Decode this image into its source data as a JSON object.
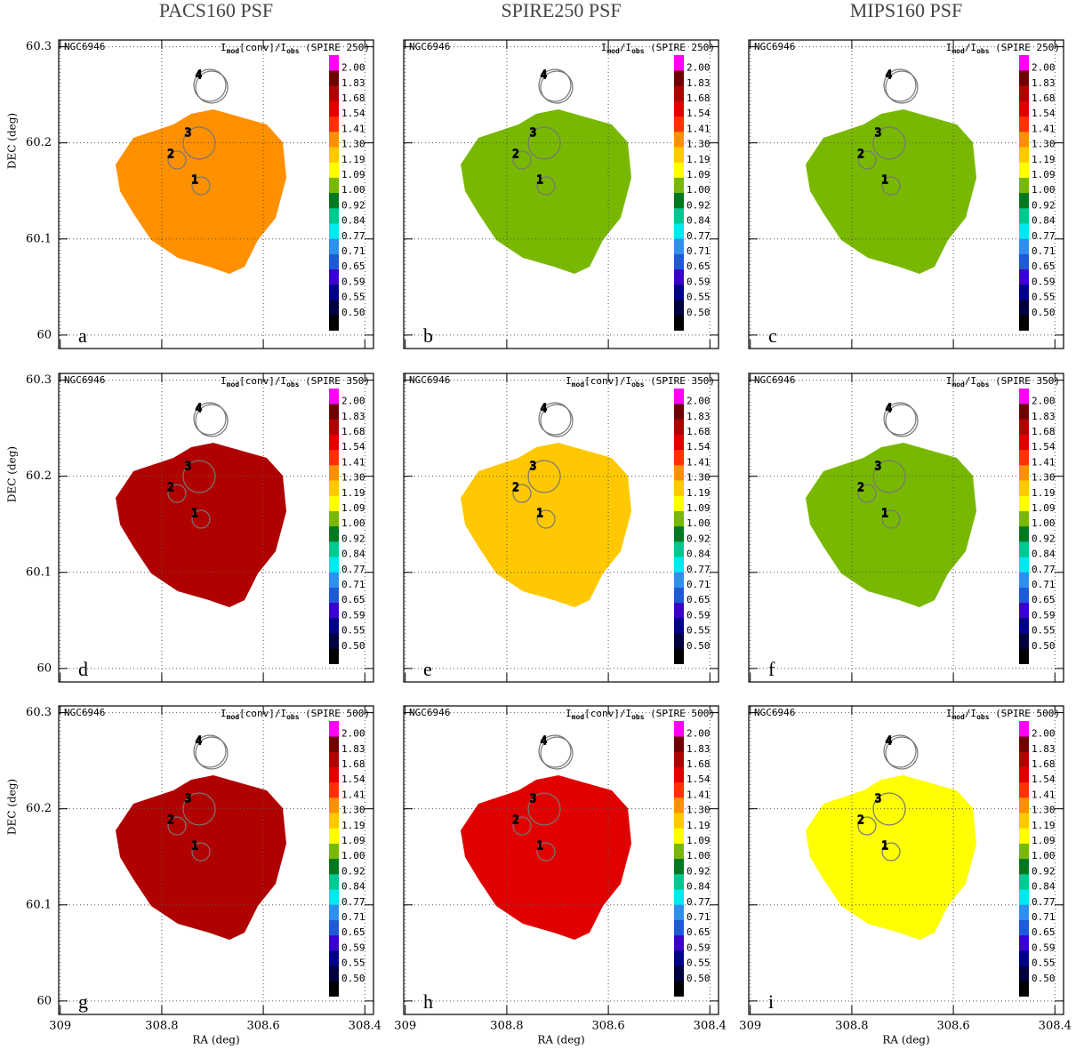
{
  "figure": {
    "type": "map-grid",
    "column_titles": [
      "PACS160 PSF",
      "SPIRE250 PSF",
      "MIPS160 PSF"
    ],
    "axes": {
      "xlabel": "RA (deg)",
      "ylabel": "DEC (deg)",
      "xlim": [
        309.003,
        308.383
      ],
      "ylim": [
        59.986,
        60.307
      ],
      "xticks": [
        309,
        308.8,
        308.6,
        308.4
      ],
      "yticks": [
        60,
        60.1,
        60.2,
        60.3
      ],
      "grid": true
    },
    "colorbar": {
      "levels": [
        {
          "value": 0.5,
          "label": "0.50"
        },
        0.55,
        0.59,
        0.65,
        0.71,
        0.77,
        0.84,
        0.92,
        {
          "value": 1,
          "label": "1.00"
        },
        1.09,
        1.19,
        {
          "value": 1.3,
          "label": "1.30"
        },
        1.41,
        1.54,
        1.68,
        1.83,
        {
          "value": 2,
          "label": "2.00"
        }
      ],
      "colors": [
        "#000000",
        "#000040",
        "#00008b",
        "#3a00d0",
        "#1e5ad8",
        "#2f8ff0",
        "#00e8f0",
        "#00c890",
        "#007820",
        "#78b800",
        "#ffff00",
        "#ffc800",
        "#ff9000",
        "#ff3000",
        "#e00000",
        "#b00000",
        "#700000",
        "#ff00ff"
      ]
    },
    "regions": [
      "1",
      "2",
      "3",
      "4"
    ],
    "panels": [
      {
        "letter": "a",
        "galaxy": "NGC6946",
        "label_parts": [
          "I",
          "mod",
          "[conv]/I",
          "obs",
          " (SPIRE 250)"
        ],
        "map_color": "#ff9000"
      },
      {
        "letter": "b",
        "galaxy": "NGC6946",
        "label_parts": [
          "I",
          "mod",
          "/I",
          "obs",
          " (SPIRE 250)"
        ],
        "map_color": "#78b800"
      },
      {
        "letter": "c",
        "galaxy": "NGC6946",
        "label_parts": [
          "I",
          "mod",
          "/I",
          "obs",
          " (SPIRE 250)"
        ],
        "map_color": "#78b800"
      },
      {
        "letter": "d",
        "galaxy": "NGC6946",
        "label_parts": [
          "I",
          "mod",
          "[conv]/I",
          "obs",
          " (SPIRE 350)"
        ],
        "map_color": "#b00000"
      },
      {
        "letter": "e",
        "galaxy": "NGC6946",
        "label_parts": [
          "I",
          "mod",
          "[conv]/I",
          "obs",
          " (SPIRE 350)"
        ],
        "map_color": "#ffc800"
      },
      {
        "letter": "f",
        "galaxy": "NGC6946",
        "label_parts": [
          "I",
          "mod",
          "/I",
          "obs",
          " (SPIRE 350)"
        ],
        "map_color": "#78b800"
      },
      {
        "letter": "g",
        "galaxy": "NGC6946",
        "label_parts": [
          "I",
          "mod",
          "[conv]/I",
          "obs",
          " (SPIRE 500)"
        ],
        "map_color": "#b00000"
      },
      {
        "letter": "h",
        "galaxy": "NGC6946",
        "label_parts": [
          "I",
          "mod",
          "[conv]/I",
          "obs",
          " (SPIRE 500)"
        ],
        "map_color": "#e00000"
      },
      {
        "letter": "i",
        "galaxy": "NGC6946",
        "label_parts": [
          "I",
          "mod",
          "/I",
          "obs",
          " (SPIRE 500)"
        ],
        "map_color": "#ffff00"
      }
    ]
  }
}
